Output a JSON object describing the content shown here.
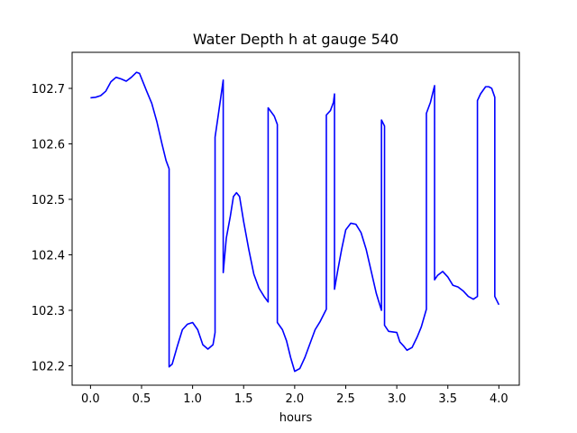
{
  "chart_data": {
    "type": "line",
    "title": "Water Depth h at gauge 540",
    "xlabel": "hours",
    "ylabel": "",
    "xlim": [
      -0.18,
      4.2
    ],
    "ylim": [
      102.165,
      102.765
    ],
    "xticks": [
      0.0,
      0.5,
      1.0,
      1.5,
      2.0,
      2.5,
      3.0,
      3.5,
      4.0
    ],
    "xtick_labels": [
      "0.0",
      "0.5",
      "1.0",
      "1.5",
      "2.0",
      "2.5",
      "3.0",
      "3.5",
      "4.0"
    ],
    "yticks": [
      102.2,
      102.3,
      102.4,
      102.5,
      102.6,
      102.7
    ],
    "ytick_labels": [
      "102.2",
      "102.3",
      "102.4",
      "102.5",
      "102.6",
      "102.7"
    ],
    "grid": false,
    "legend": "none",
    "series": [
      {
        "color": "#0000ff",
        "x": [
          0.0,
          0.05,
          0.1,
          0.15,
          0.2,
          0.25,
          0.3,
          0.35,
          0.4,
          0.45,
          0.48,
          0.5,
          0.55,
          0.6,
          0.65,
          0.7,
          0.74,
          0.77,
          0.77,
          0.8,
          0.85,
          0.9,
          0.95,
          1.0,
          1.05,
          1.1,
          1.15,
          1.2,
          1.22,
          1.22,
          1.25,
          1.3,
          1.3,
          1.33,
          1.37,
          1.4,
          1.43,
          1.46,
          1.5,
          1.55,
          1.6,
          1.65,
          1.7,
          1.74,
          1.74,
          1.8,
          1.83,
          1.83,
          1.88,
          1.92,
          1.96,
          2.0,
          2.05,
          2.1,
          2.15,
          2.2,
          2.25,
          2.31,
          2.31,
          2.35,
          2.38,
          2.39,
          2.39,
          2.42,
          2.46,
          2.5,
          2.55,
          2.6,
          2.65,
          2.7,
          2.75,
          2.8,
          2.85,
          2.85,
          2.88,
          2.88,
          2.92,
          3.0,
          3.03,
          3.07,
          3.1,
          3.15,
          3.2,
          3.24,
          3.29,
          3.29,
          3.33,
          3.37,
          3.37,
          3.4,
          3.45,
          3.5,
          3.55,
          3.6,
          3.65,
          3.7,
          3.75,
          3.79,
          3.79,
          3.82,
          3.87,
          3.9,
          3.93,
          3.96,
          3.96,
          4.0
        ],
        "y": [
          102.683,
          102.684,
          102.687,
          102.695,
          102.712,
          102.72,
          102.717,
          102.713,
          102.72,
          102.729,
          102.727,
          102.718,
          102.695,
          102.673,
          102.64,
          102.6,
          102.57,
          102.555,
          102.198,
          102.203,
          102.235,
          102.265,
          102.275,
          102.278,
          102.265,
          102.238,
          102.23,
          102.238,
          102.26,
          102.612,
          102.65,
          102.715,
          102.368,
          102.43,
          102.47,
          102.505,
          102.512,
          102.505,
          102.46,
          102.41,
          102.365,
          102.34,
          102.325,
          102.315,
          102.665,
          102.65,
          102.635,
          102.278,
          102.265,
          102.245,
          102.215,
          102.19,
          102.195,
          102.215,
          102.24,
          102.265,
          102.28,
          102.302,
          102.652,
          102.66,
          102.675,
          102.69,
          102.338,
          102.37,
          102.41,
          102.445,
          102.457,
          102.455,
          102.44,
          102.41,
          102.37,
          102.33,
          102.3,
          102.643,
          102.632,
          102.273,
          102.262,
          102.26,
          102.243,
          102.235,
          102.228,
          102.233,
          102.252,
          102.27,
          102.302,
          102.655,
          102.675,
          102.705,
          102.355,
          102.363,
          102.37,
          102.36,
          102.345,
          102.342,
          102.335,
          102.325,
          102.32,
          102.325,
          102.678,
          102.69,
          102.703,
          102.703,
          102.7,
          102.684,
          102.325,
          102.31
        ]
      }
    ]
  }
}
